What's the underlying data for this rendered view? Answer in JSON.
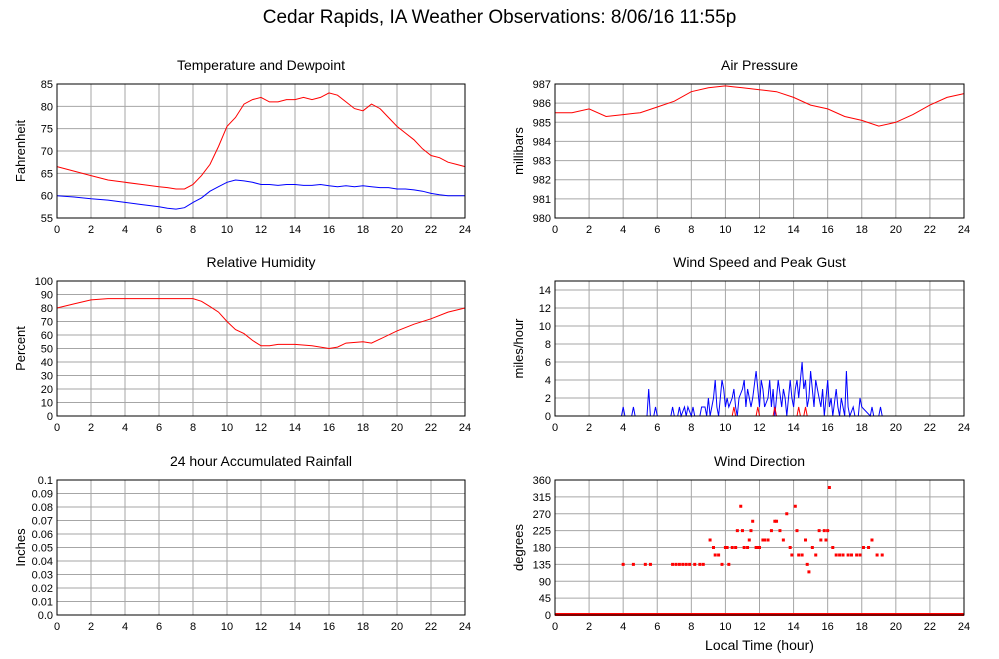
{
  "page": {
    "title": "Cedar Rapids, IA Weather Observations: 8/06/16 11:55p",
    "x_axis_label": "Local Time (hour)"
  },
  "colors": {
    "red": "#ff0000",
    "blue": "#0000ff",
    "grid": "#a6a6a6",
    "axis": "#000000"
  },
  "chart_data": [
    {
      "id": "temperature",
      "type": "line",
      "title": "Temperature and Dewpoint",
      "xlabel": "",
      "ylabel": "Fahrenheit",
      "xlim": [
        0,
        24
      ],
      "ylim": [
        55,
        85
      ],
      "x_ticks": [
        0,
        2,
        4,
        6,
        8,
        10,
        12,
        14,
        16,
        18,
        20,
        22,
        24
      ],
      "y_ticks": [
        55,
        60,
        65,
        70,
        75,
        80,
        85
      ],
      "grid": true,
      "series": [
        {
          "color": "#ff0000",
          "x": [
            0,
            1,
            2,
            3,
            4,
            5,
            6,
            6.5,
            7,
            7.5,
            8,
            8.5,
            9,
            9.5,
            10,
            10.5,
            11,
            11.5,
            12,
            12.5,
            13,
            13.5,
            14,
            14.5,
            15,
            15.5,
            16,
            16.5,
            17,
            17.5,
            18,
            18.5,
            19,
            19.5,
            20,
            20.5,
            21,
            21.5,
            22,
            22.5,
            23,
            23.5,
            24
          ],
          "y": [
            66.5,
            65.5,
            64.5,
            63.5,
            63,
            62.5,
            62,
            61.8,
            61.5,
            61.5,
            62.5,
            64.5,
            67,
            71,
            75.5,
            77.5,
            80.5,
            81.5,
            82,
            81,
            81,
            81.5,
            81.5,
            82,
            81.5,
            82,
            83,
            82.5,
            81,
            79.5,
            79,
            80.5,
            79.5,
            77.5,
            75.5,
            74,
            72.5,
            70.5,
            69,
            68.5,
            67.5,
            67,
            66.5
          ]
        },
        {
          "color": "#0000ff",
          "x": [
            0,
            1,
            2,
            3,
            4,
            5,
            6,
            6.5,
            7,
            7.5,
            8,
            8.5,
            9,
            9.5,
            10,
            10.5,
            11,
            11.5,
            12,
            12.5,
            13,
            13.5,
            14,
            14.5,
            15,
            15.5,
            16,
            16.5,
            17,
            17.5,
            18,
            18.5,
            19,
            19.5,
            20,
            20.5,
            21,
            21.5,
            22,
            22.5,
            23,
            23.5,
            24
          ],
          "y": [
            60,
            59.7,
            59.3,
            59,
            58.5,
            58,
            57.5,
            57.2,
            57,
            57.3,
            58.5,
            59.5,
            61,
            62,
            63,
            63.5,
            63.3,
            63,
            62.5,
            62.5,
            62.3,
            62.5,
            62.5,
            62.3,
            62.3,
            62.5,
            62.2,
            62,
            62.2,
            62,
            62.2,
            62,
            61.8,
            61.8,
            61.5,
            61.5,
            61.3,
            61,
            60.5,
            60.2,
            60,
            60,
            60
          ]
        }
      ]
    },
    {
      "id": "pressure",
      "type": "line",
      "title": "Air Pressure",
      "xlabel": "",
      "ylabel": "millibars",
      "xlim": [
        0,
        24
      ],
      "ylim": [
        980,
        987
      ],
      "x_ticks": [
        0,
        2,
        4,
        6,
        8,
        10,
        12,
        14,
        16,
        18,
        20,
        22,
        24
      ],
      "y_ticks": [
        980,
        981,
        982,
        983,
        984,
        985,
        986,
        987
      ],
      "grid": true,
      "series": [
        {
          "color": "#ff0000",
          "x": [
            0,
            1,
            2,
            3,
            4,
            5,
            6,
            7,
            8,
            9,
            10,
            10.5,
            11,
            12,
            13,
            14,
            15,
            16,
            17,
            18,
            19,
            20,
            21,
            22,
            23,
            24
          ],
          "y": [
            985.5,
            985.5,
            985.7,
            985.3,
            985.4,
            985.5,
            985.8,
            986.1,
            986.6,
            986.8,
            986.9,
            986.85,
            986.8,
            986.7,
            986.6,
            986.3,
            985.9,
            985.7,
            985.3,
            985.1,
            984.8,
            985,
            985.4,
            985.9,
            986.3,
            986.5
          ]
        }
      ]
    },
    {
      "id": "humidity",
      "type": "line",
      "title": "Relative Humidity",
      "xlabel": "",
      "ylabel": "Percent",
      "xlim": [
        0,
        24
      ],
      "ylim": [
        0,
        100
      ],
      "x_ticks": [
        0,
        2,
        4,
        6,
        8,
        10,
        12,
        14,
        16,
        18,
        20,
        22,
        24
      ],
      "y_ticks": [
        0,
        10,
        20,
        30,
        40,
        50,
        60,
        70,
        80,
        90,
        100
      ],
      "grid": true,
      "series": [
        {
          "color": "#ff0000",
          "x": [
            0,
            1,
            2,
            3,
            4,
            5,
            6,
            7,
            8,
            8.5,
            9,
            9.5,
            10,
            10.5,
            11,
            11.5,
            12,
            12.5,
            13,
            14,
            15,
            16,
            16.5,
            17,
            18,
            18.5,
            19,
            20,
            21,
            22,
            23,
            24
          ],
          "y": [
            80,
            83,
            86,
            87,
            87,
            87,
            87,
            87,
            87,
            85,
            81,
            77,
            70,
            64,
            61,
            56,
            52,
            52,
            53,
            53,
            52,
            50,
            51,
            54,
            55,
            54,
            57,
            63,
            68,
            72,
            77,
            80
          ]
        }
      ]
    },
    {
      "id": "wind-speed",
      "type": "line",
      "title": "Wind Speed and Peak Gust",
      "xlabel": "",
      "ylabel": "miles/hour",
      "xlim": [
        0,
        24
      ],
      "ylim": [
        0,
        15
      ],
      "x_ticks": [
        0,
        2,
        4,
        6,
        8,
        10,
        12,
        14,
        16,
        18,
        20,
        22,
        24
      ],
      "y_ticks": [
        0,
        2,
        4,
        6,
        8,
        10,
        12,
        14
      ],
      "grid": true,
      "series": [
        {
          "color": "#0000ff",
          "x": [
            0,
            3.9,
            4,
            4.1,
            4.5,
            4.6,
            4.7,
            5.4,
            5.5,
            5.6,
            5.8,
            5.9,
            6.0,
            6.8,
            6.9,
            7.0,
            7.2,
            7.3,
            7.4,
            7.6,
            7.7,
            7.8,
            8.0,
            8.1,
            8.2,
            8.5,
            8.6,
            8.8,
            8.9,
            9.0,
            9.1,
            9.2,
            9.3,
            9.4,
            9.5,
            9.6,
            9.7,
            9.8,
            9.9,
            10.0,
            10.1,
            10.2,
            10.4,
            10.5,
            10.6,
            10.7,
            10.8,
            11.0,
            11.1,
            11.2,
            11.3,
            11.5,
            11.6,
            11.8,
            11.9,
            12.0,
            12.1,
            12.2,
            12.3,
            12.5,
            12.6,
            12.7,
            12.8,
            12.9,
            13.0,
            13.1,
            13.3,
            13.4,
            13.5,
            13.6,
            13.8,
            13.9,
            14.0,
            14.1,
            14.2,
            14.3,
            14.5,
            14.6,
            14.7,
            14.8,
            14.9,
            15.0,
            15.1,
            15.2,
            15.3,
            15.5,
            15.6,
            15.7,
            15.8,
            15.9,
            16.0,
            16.1,
            16.2,
            16.3,
            16.5,
            16.6,
            16.7,
            16.8,
            17.0,
            17.1,
            17.2,
            17.3,
            17.5,
            17.6,
            17.8,
            17.9,
            18.0,
            18.5,
            18.6,
            18.7,
            19.0,
            19.1,
            19.2,
            19.5,
            24
          ],
          "y": [
            0,
            0,
            1,
            0,
            0,
            1,
            0,
            0,
            3,
            0,
            0,
            1,
            0,
            0,
            1,
            0,
            0,
            1,
            0,
            1,
            0,
            1,
            0,
            1,
            0,
            0,
            1,
            1,
            0,
            2,
            0,
            1,
            2,
            4,
            1,
            0,
            2,
            4,
            3,
            1,
            2,
            1,
            2,
            3,
            1,
            0,
            2,
            3,
            4,
            1,
            3,
            1,
            2,
            5,
            3,
            1,
            4,
            3,
            1,
            2,
            4,
            1,
            3,
            0,
            2,
            4,
            1,
            3,
            2,
            0,
            4,
            2,
            1,
            3,
            4,
            2,
            6,
            3,
            4,
            1,
            2,
            5,
            3,
            1,
            4,
            2,
            1,
            3,
            0,
            2,
            4,
            1,
            2,
            0,
            3,
            1,
            0,
            2,
            0,
            5,
            1,
            0,
            1,
            0,
            0,
            2,
            1,
            0,
            1,
            0,
            0,
            1,
            0,
            0,
            0
          ]
        },
        {
          "color": "#ff0000",
          "x": [
            0,
            10.4,
            10.5,
            10.6,
            11.8,
            11.9,
            12.0,
            12.8,
            12.9,
            13.0,
            14.2,
            14.3,
            14.4,
            14.6,
            14.7,
            14.8,
            24
          ],
          "y": [
            0,
            0,
            1,
            0,
            0,
            1,
            0,
            0,
            1,
            0,
            0,
            1,
            0,
            0,
            1,
            0,
            0
          ]
        }
      ]
    },
    {
      "id": "rainfall",
      "type": "line",
      "title": "24 hour Accumulated Rainfall",
      "xlabel": "",
      "ylabel": "Inches",
      "xlim": [
        0,
        24
      ],
      "ylim": [
        0,
        0.1
      ],
      "x_ticks": [
        0,
        2,
        4,
        6,
        8,
        10,
        12,
        14,
        16,
        18,
        20,
        22,
        24
      ],
      "y_ticks": [
        0.0,
        0.01,
        0.02,
        0.03,
        0.04,
        0.05,
        0.06,
        0.07,
        0.08,
        0.09,
        0.1
      ],
      "y_tick_labels": [
        "0.0",
        "0.01",
        "0.02",
        "0.03",
        "0.04",
        "0.05",
        "0.06",
        "0.07",
        "0.08",
        "0.09",
        "0.1"
      ],
      "grid": true,
      "series": [
        {
          "color": "#ff0000",
          "x": [
            0,
            24
          ],
          "y": [
            0,
            0
          ]
        }
      ]
    },
    {
      "id": "wind-direction",
      "type": "scatter",
      "title": "Wind Direction",
      "xlabel": "Local Time (hour)",
      "ylabel": "degrees",
      "xlim": [
        0,
        24
      ],
      "ylim": [
        0,
        360
      ],
      "x_ticks": [
        0,
        2,
        4,
        6,
        8,
        10,
        12,
        14,
        16,
        18,
        20,
        22,
        24
      ],
      "y_ticks": [
        0,
        45,
        90,
        135,
        180,
        225,
        270,
        315,
        360
      ],
      "grid": true,
      "zero_line_x": [
        0,
        24
      ],
      "series": [
        {
          "color": "#ff0000",
          "x": [
            4.0,
            4.6,
            5.3,
            5.6,
            6.9,
            7.1,
            7.3,
            7.5,
            7.7,
            7.9,
            8.2,
            8.5,
            8.7,
            9.1,
            9.3,
            9.4,
            9.6,
            9.8,
            10.0,
            10.1,
            10.2,
            10.4,
            10.6,
            10.7,
            10.9,
            11.0,
            11.1,
            11.3,
            11.4,
            11.5,
            11.6,
            11.8,
            11.9,
            12.0,
            12.2,
            12.3,
            12.5,
            12.7,
            12.9,
            13.0,
            13.2,
            13.4,
            13.6,
            13.8,
            13.9,
            14.1,
            14.2,
            14.3,
            14.5,
            14.7,
            14.8,
            14.9,
            15.1,
            15.3,
            15.5,
            15.6,
            15.8,
            15.9,
            16.0,
            16.1,
            16.3,
            16.5,
            16.7,
            16.9,
            17.2,
            17.4,
            17.7,
            17.9,
            18.1,
            18.4,
            18.6,
            18.9,
            19.2
          ],
          "y": [
            135,
            135,
            135,
            135,
            135,
            135,
            135,
            135,
            135,
            135,
            135,
            135,
            135,
            200,
            180,
            160,
            160,
            135,
            180,
            180,
            135,
            180,
            180,
            225,
            290,
            225,
            180,
            180,
            200,
            225,
            250,
            180,
            180,
            180,
            200,
            200,
            200,
            225,
            250,
            250,
            225,
            200,
            270,
            180,
            160,
            290,
            225,
            160,
            160,
            200,
            135,
            115,
            180,
            160,
            225,
            200,
            225,
            200,
            225,
            340,
            180,
            160,
            160,
            160,
            160,
            160,
            160,
            160,
            180,
            180,
            200,
            160,
            160
          ]
        }
      ]
    }
  ]
}
